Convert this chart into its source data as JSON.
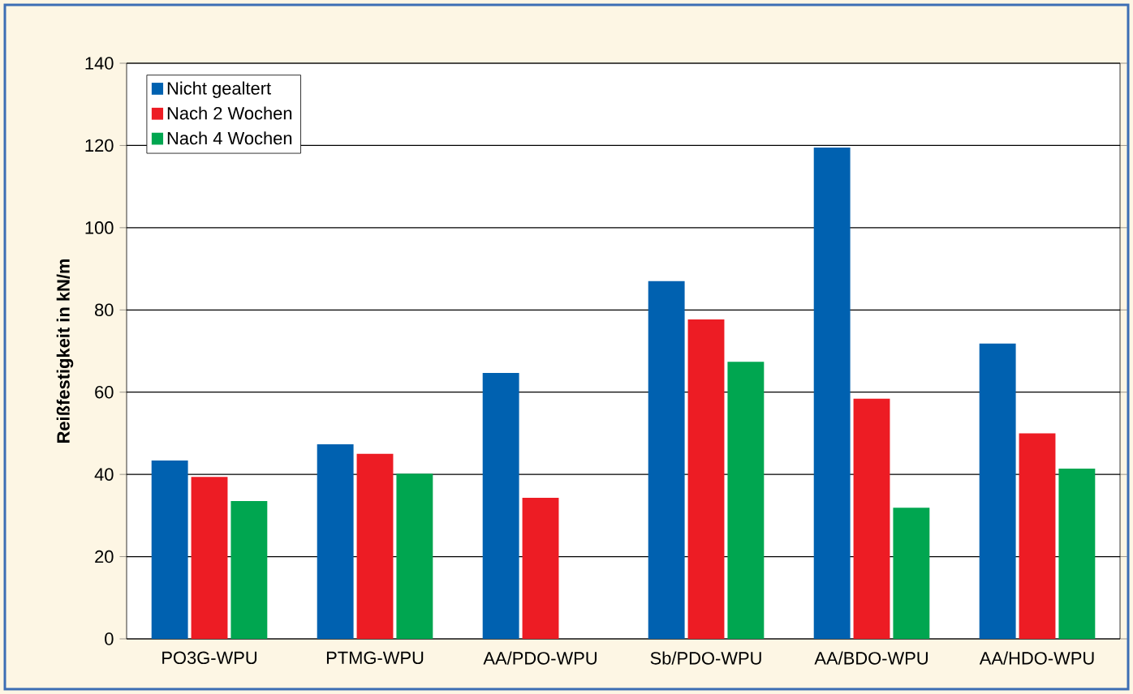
{
  "chart_data": {
    "type": "bar",
    "ylabel": "**Reißfestigkeit in kN/m**",
    "categories": [
      "PO3G-WPU",
      "PTMG-WPU",
      "AA/PDO-WPU",
      "Sb/PDO-WPU",
      "AA/BDO-WPU",
      "AA/HDO-WPU"
    ],
    "series": [
      {
        "name": "Nicht gealtert",
        "color": "#0061b0",
        "values": [
          43.4,
          47.3,
          64.7,
          87,
          119.5,
          71.8
        ]
      },
      {
        "name": "Nach 2 Wochen",
        "color": "#ed1c24",
        "values": [
          39.4,
          45,
          34.3,
          77.7,
          58.4,
          50
        ]
      },
      {
        "name": "Nach 4 Wochen",
        "color": "#00a650",
        "values": [
          33.5,
          40.2,
          null,
          67.4,
          31.9,
          41.4
        ]
      }
    ],
    "ylim": [
      0,
      140
    ],
    "yticks": [
      0,
      20,
      40,
      60,
      80,
      100,
      120,
      140
    ],
    "grid": "y",
    "legend": "top left"
  }
}
